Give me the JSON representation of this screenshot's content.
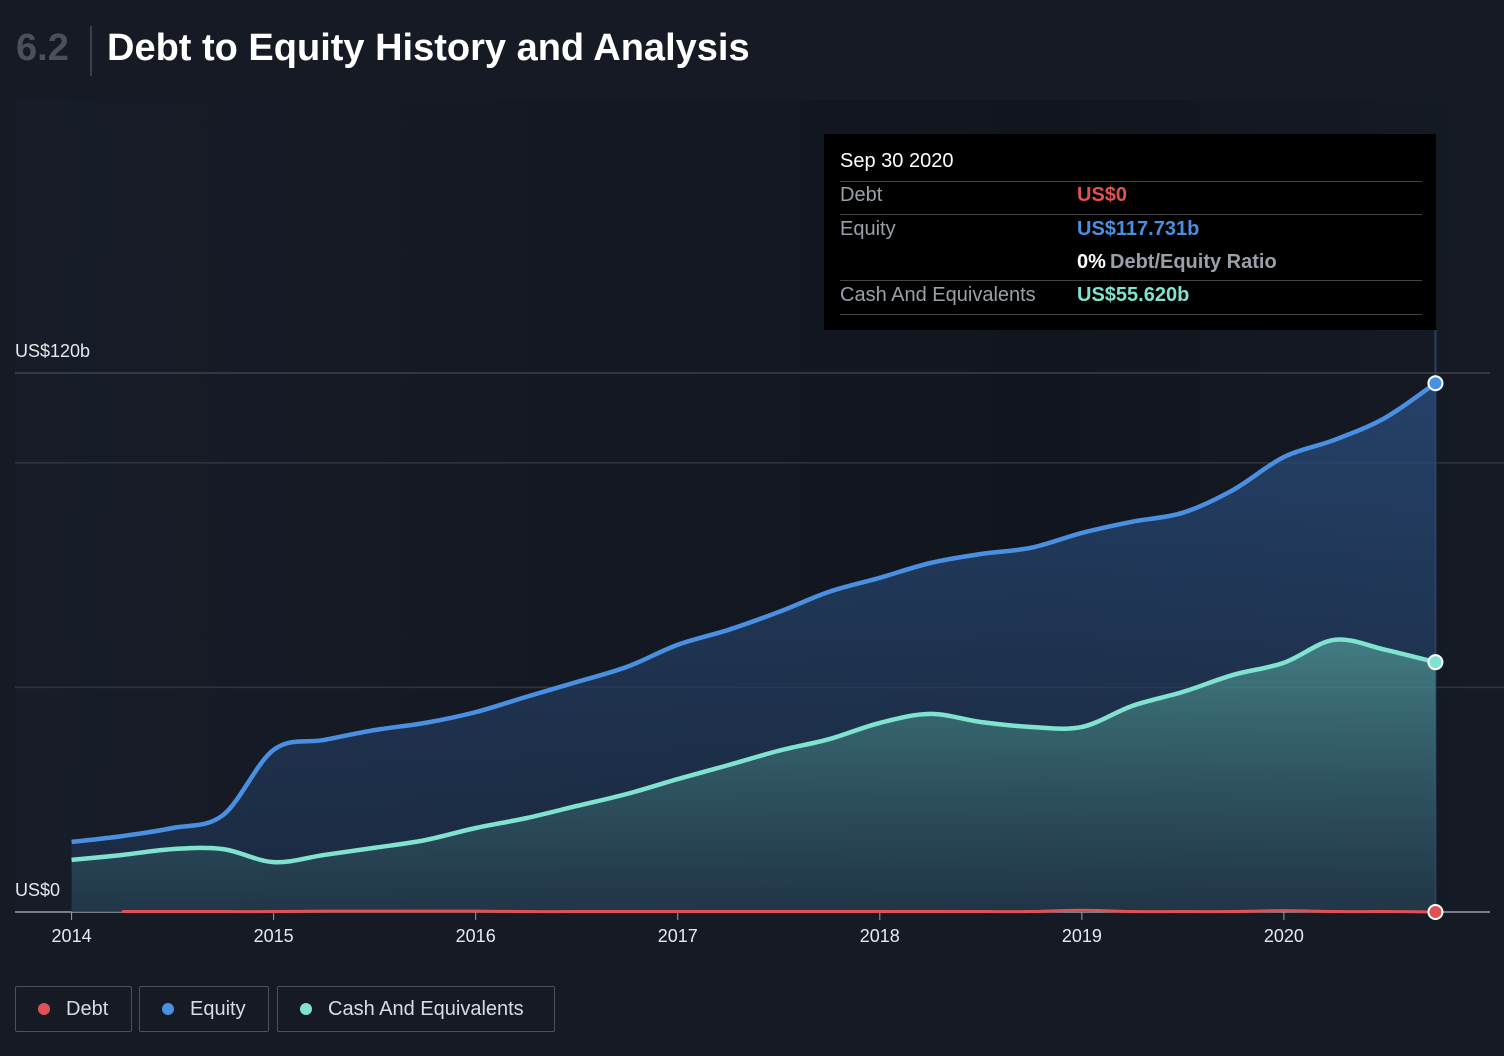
{
  "heading": {
    "number": "6.2",
    "title": "Debt to Equity History and Analysis"
  },
  "chart_data": {
    "type": "line",
    "x": [
      2014,
      2014.25,
      2014.5,
      2014.75,
      2015,
      2015.25,
      2015.5,
      2015.75,
      2016,
      2016.25,
      2016.5,
      2016.75,
      2017,
      2017.25,
      2017.5,
      2017.75,
      2018,
      2018.25,
      2018.5,
      2018.75,
      2019,
      2019.25,
      2019.5,
      2019.75,
      2020,
      2020.25,
      2020.5,
      2020.75
    ],
    "series": [
      {
        "name": "Debt",
        "color": "#e05252",
        "area": false,
        "values": [
          null,
          0.1,
          0.1,
          0.1,
          0.1,
          0.2,
          0.2,
          0.2,
          0.2,
          0.1,
          0.1,
          0.1,
          0.1,
          0.1,
          0.1,
          0.1,
          0.1,
          0.1,
          0.1,
          0.1,
          0.4,
          0.1,
          0.1,
          0.1,
          0.3,
          0.1,
          0.1,
          0
        ]
      },
      {
        "name": "Equity",
        "color": "#4a90e2",
        "area": true,
        "values": [
          15.6,
          16.9,
          18.7,
          21.6,
          36.1,
          38.3,
          40.5,
          42.1,
          44.5,
          47.9,
          51.2,
          54.6,
          59.5,
          62.8,
          66.8,
          71.3,
          74.4,
          77.7,
          79.7,
          81.1,
          84.4,
          86.9,
          88.9,
          94.0,
          101.3,
          105.1,
          110.0,
          117.731
        ]
      },
      {
        "name": "Cash And Equivalents",
        "color": "#7fe3cf",
        "area": true,
        "values": [
          11.6,
          12.7,
          14.0,
          14.0,
          11.1,
          12.7,
          14.3,
          16.0,
          18.7,
          20.9,
          23.6,
          26.3,
          29.6,
          32.7,
          35.9,
          38.5,
          42.1,
          44.1,
          42.3,
          41.2,
          41.2,
          45.9,
          49.0,
          52.8,
          55.5,
          60.6,
          58.4,
          55.62
        ]
      }
    ],
    "xlim": [
      2013.72,
      2021.02
    ],
    "xticks": [
      2014,
      2015,
      2016,
      2017,
      2018,
      2019,
      2020
    ],
    "ylim": [
      0,
      120
    ],
    "yticks": [
      {
        "value": 0,
        "label": "US$0"
      },
      {
        "value": 120,
        "label": "US$120b"
      }
    ],
    "grid_values": [
      50,
      100
    ],
    "grid": true
  },
  "tooltip": {
    "date": "Sep 30 2020",
    "rows": [
      {
        "label": "Debt",
        "value": "US$0",
        "color": "#e05252"
      },
      {
        "label": "Equity",
        "value": "US$117.731b",
        "color": "#4a90e2"
      },
      {
        "label": "Cash And Equivalents",
        "value": "US$55.620b",
        "color": "#7fe3cf"
      }
    ],
    "ratio": "0%",
    "ratio_label": "Debt/Equity Ratio"
  }
}
